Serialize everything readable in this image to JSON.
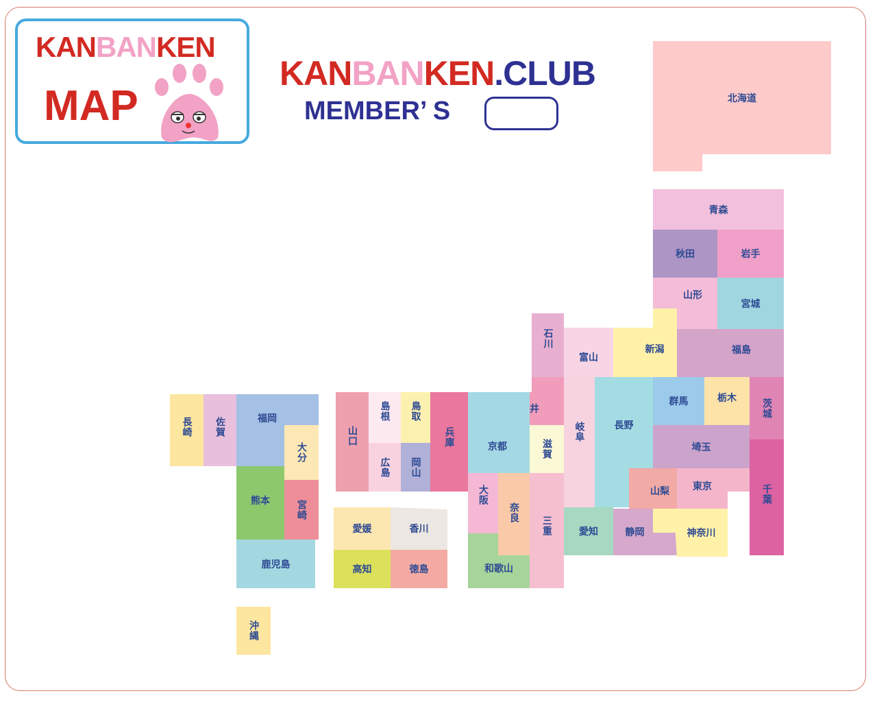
{
  "logo": {
    "title_parts": [
      "KAN",
      "BAN",
      "KEN"
    ],
    "subtitle": "MAP",
    "mascot": "paw-face-mascot"
  },
  "header": {
    "brand_parts": [
      "KAN",
      "BAN",
      "KEN"
    ],
    "domain": ".CLUB",
    "member_label": "MEMBER’ S",
    "member_value": ""
  },
  "colors": {
    "red": "#d22a22",
    "pink": "#f2a2c5",
    "navy": "#2e3192",
    "frame": "#d9776b",
    "logo_border": "#45a9de",
    "label": "#2d4a93"
  },
  "map": {
    "prefectures": [
      {
        "name": "北海道",
        "color": "#fecaca"
      },
      {
        "name": "青森",
        "color": "#f2c0dc"
      },
      {
        "name": "秋田",
        "color": "#ad95c6"
      },
      {
        "name": "岩手",
        "color": "#f0a0c8"
      },
      {
        "name": "山形",
        "color": "#f5bcd8"
      },
      {
        "name": "宮城",
        "color": "#a0d6e0"
      },
      {
        "name": "新潟",
        "color": "#fff2a8"
      },
      {
        "name": "福島",
        "color": "#d5a4c9"
      },
      {
        "name": "石川",
        "color": "#e8b0d0"
      },
      {
        "name": "富山",
        "color": "#f7d5e5"
      },
      {
        "name": "福井",
        "color": "#f09cba"
      },
      {
        "name": "岐阜",
        "color": "#f7d3e0"
      },
      {
        "name": "長野",
        "color": "#a4dce3"
      },
      {
        "name": "群馬",
        "color": "#9ccaeb"
      },
      {
        "name": "栃木",
        "color": "#fde3a8"
      },
      {
        "name": "茨城",
        "color": "#e084b4"
      },
      {
        "name": "埼玉",
        "color": "#cba3cb"
      },
      {
        "name": "千葉",
        "color": "#dc62a2"
      },
      {
        "name": "山梨",
        "color": "#f2aaa6"
      },
      {
        "name": "東京",
        "color": "#f4b5ca"
      },
      {
        "name": "神奈川",
        "color": "#fff2a8"
      },
      {
        "name": "静岡",
        "color": "#d5a8cc"
      },
      {
        "name": "愛知",
        "color": "#a6d8c2"
      },
      {
        "name": "三重",
        "color": "#f6bfcf"
      },
      {
        "name": "京都",
        "color": "#a4d8e4"
      },
      {
        "name": "滋賀",
        "color": "#fbf8d5"
      },
      {
        "name": "大阪",
        "color": "#f4b8d4"
      },
      {
        "name": "奈良",
        "color": "#f9c9a8"
      },
      {
        "name": "和歌山",
        "color": "#a6d49a"
      },
      {
        "name": "兵庫",
        "color": "#ea779d"
      },
      {
        "name": "鳥取",
        "color": "#fdf1b0"
      },
      {
        "name": "岡山",
        "color": "#b0b0d8"
      },
      {
        "name": "島根",
        "color": "#fdeaf0"
      },
      {
        "name": "広島",
        "color": "#f9d2e0"
      },
      {
        "name": "山口",
        "color": "#efa0ae"
      },
      {
        "name": "愛媛",
        "color": "#fde7b0"
      },
      {
        "name": "香川",
        "color": "#ece7e2"
      },
      {
        "name": "高知",
        "color": "#dce05a"
      },
      {
        "name": "徳島",
        "color": "#f4aaa2"
      },
      {
        "name": "長崎",
        "color": "#fde6a0"
      },
      {
        "name": "佐賀",
        "color": "#e8c0dc"
      },
      {
        "name": "福岡",
        "color": "#a4c0e4"
      },
      {
        "name": "大分",
        "color": "#fde7b4"
      },
      {
        "name": "熊本",
        "color": "#8ec86c"
      },
      {
        "name": "宮崎",
        "color": "#ee8e98"
      },
      {
        "name": "鹿児島",
        "color": "#a4d8e0"
      },
      {
        "name": "沖縄",
        "color": "#fde6a0"
      }
    ]
  }
}
